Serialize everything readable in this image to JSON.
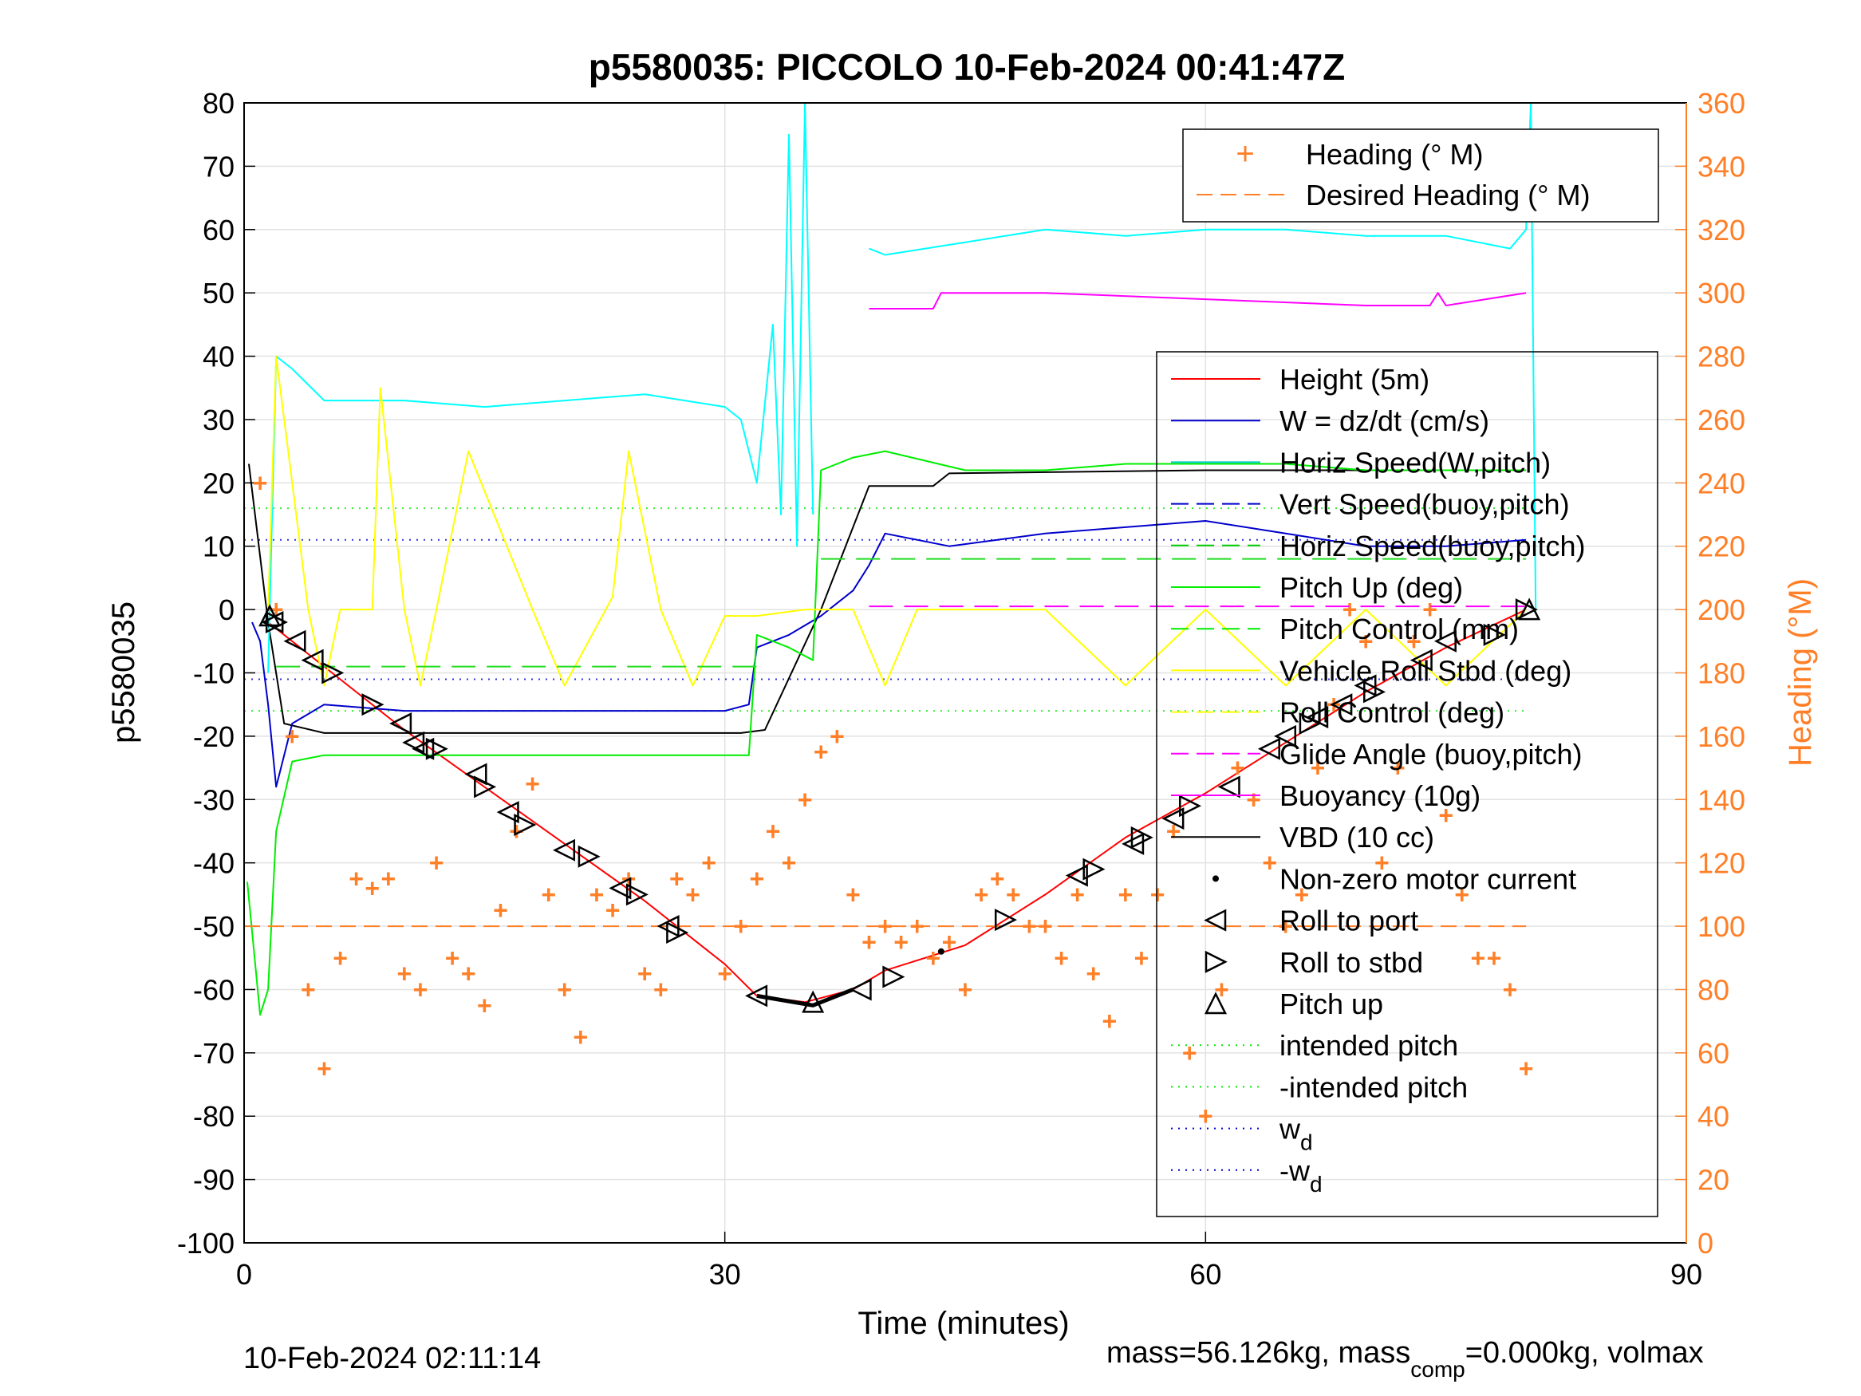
{
  "chart_data": {
    "type": "line",
    "title": "p5580035: PICCOLO 10-Feb-2024 00:41:47Z",
    "xlabel": "Time (minutes)",
    "ylabel_left": "p5580035",
    "ylabel_right": "Heading (°M)",
    "xlim": [
      0,
      90
    ],
    "ylim_left": [
      -100,
      80
    ],
    "ylim_right": [
      0,
      360
    ],
    "xticks": [
      "0",
      "30",
      "60",
      "90"
    ],
    "yticks_left": [
      "80",
      "70",
      "60",
      "50",
      "40",
      "30",
      "20",
      "10",
      "0",
      "-10",
      "-20",
      "-30",
      "-40",
      "-50",
      "-60",
      "-70",
      "-80",
      "-90",
      "-100"
    ],
    "yticks_right": [
      "360",
      "340",
      "320",
      "300",
      "280",
      "260",
      "240",
      "220",
      "200",
      "180",
      "160",
      "140",
      "120",
      "100",
      "80",
      "60",
      "40",
      "20",
      "0"
    ],
    "grid": true,
    "footer_left": "10-Feb-2024 02:11:14",
    "footer_right_parts": [
      "mass=56.126kg, mass",
      "comp",
      "=0.000kg, volmax"
    ],
    "legend_heading": {
      "placement": "top-right",
      "entries": [
        "Heading (° M)",
        "Desired Heading (° M)"
      ]
    },
    "legend_main": {
      "placement": "right",
      "entries": [
        {
          "label": "Height (5m)",
          "color": "#ff0000",
          "style": "solid"
        },
        {
          "label": "W = dz/dt (cm/s)",
          "color": "#0000cc",
          "style": "solid"
        },
        {
          "label": "Horiz Speed(W,pitch)",
          "color": "#00cccc",
          "style": "solid"
        },
        {
          "label": "Vert Speed(buoy,pitch)",
          "color": "#0000cc",
          "style": "dash"
        },
        {
          "label": "Horiz Speed(buoy,pitch)",
          "color": "#00cc00",
          "style": "dash"
        },
        {
          "label": "Pitch Up (deg)",
          "color": "#00ee00",
          "style": "solid"
        },
        {
          "label": "Pitch Control (mm)",
          "color": "#00ee00",
          "style": "dash"
        },
        {
          "label": "Vehicle Roll Stbd (deg)",
          "color": "#ffff00",
          "style": "solid"
        },
        {
          "label": "Roll Control (deg)",
          "color": "#ffff00",
          "style": "dash"
        },
        {
          "label": "Glide Angle (buoy,pitch)",
          "color": "#ff00ff",
          "style": "dash"
        },
        {
          "label": "Buoyancy (10g)",
          "color": "#ff00ff",
          "style": "solid"
        },
        {
          "label": "VBD (10 cc)",
          "color": "#000000",
          "style": "solid"
        },
        {
          "label": "Non-zero motor current",
          "color": "#000000",
          "style": "dot"
        },
        {
          "label": "Roll to port",
          "color": "#000000",
          "style": "tri-left"
        },
        {
          "label": "Roll to stbd",
          "color": "#000000",
          "style": "tri-right"
        },
        {
          "label": "Pitch up",
          "color": "#000000",
          "style": "tri-up"
        },
        {
          "label": "intended pitch",
          "color": "#00ee00",
          "style": "dot"
        },
        {
          "label": "-intended pitch",
          "color": "#00ee00",
          "style": "dot"
        },
        {
          "label": "w_d",
          "label_main": "w",
          "label_sub": "d",
          "color": "#0000cc",
          "style": "dot"
        },
        {
          "label": "-w_d",
          "label_main": "-w",
          "label_sub": "d",
          "color": "#0000cc",
          "style": "dot"
        }
      ]
    },
    "colors": {
      "heading": "#ff7f27",
      "height": "#ff0000",
      "w": "#0000cc",
      "horiz_w": "#00ffff",
      "pitch": "#00ee00",
      "roll": "#ffff00",
      "buoyancy": "#ff00ff",
      "vbd": "#000000"
    },
    "series": [
      {
        "name": "Height (5m)",
        "axis": "left",
        "x": [
          1.5,
          5,
          10,
          15,
          20,
          25,
          30,
          32,
          35,
          38,
          40,
          45,
          50,
          55,
          60,
          65,
          70,
          75,
          80
        ],
        "y": [
          -2,
          -9,
          -19,
          -28,
          -37,
          -46,
          -56,
          -61,
          -62,
          -60,
          -57,
          -53,
          -45,
          -36,
          -29,
          -21,
          -13,
          -6,
          0
        ]
      },
      {
        "name": "VBD (10 cc)",
        "axis": "left",
        "x": [
          0.3,
          1.5,
          2.5,
          5,
          10,
          20,
          31,
          32.5,
          36,
          39,
          43,
          44,
          60,
          80
        ],
        "y": [
          23,
          -2,
          -18,
          -19.5,
          -19.5,
          -19.5,
          -19.5,
          -19,
          0,
          19.5,
          19.5,
          21.5,
          22,
          22
        ]
      },
      {
        "name": "W = dz/dt (cm/s)",
        "axis": "left",
        "x": [
          0.5,
          1,
          1.5,
          2,
          3,
          5,
          10,
          15,
          20,
          25,
          30,
          31.5,
          32,
          34,
          36,
          38,
          39,
          40,
          44,
          50,
          55,
          60,
          65,
          70,
          75,
          80
        ],
        "y": [
          -2,
          -5,
          -15,
          -28,
          -18,
          -15,
          -16,
          -16,
          -16,
          -16,
          -16,
          -15,
          -6,
          -4,
          -1,
          3,
          7,
          12,
          10,
          12,
          13,
          14,
          12,
          10,
          10,
          11
        ]
      },
      {
        "name": "Horiz Speed(W,pitch)",
        "axis": "left",
        "x": [
          1.5,
          2,
          3,
          5,
          10,
          15,
          20,
          25,
          30,
          31,
          32,
          33,
          33.5,
          34,
          34.5,
          35,
          35.5
        ],
        "y": [
          -10,
          40,
          38,
          33,
          33,
          32,
          33,
          34,
          32,
          30,
          20,
          45,
          15,
          75,
          10,
          80,
          15
        ]
      },
      {
        "name": "Horiz Speed(W,pitch) climb",
        "axis": "left",
        "x": [
          39,
          40,
          45,
          50,
          55,
          60,
          65,
          70,
          75,
          79,
          80,
          80.3,
          80.6
        ],
        "y": [
          57,
          56,
          58,
          60,
          59,
          60,
          60,
          59,
          59,
          57,
          60,
          80,
          0
        ]
      },
      {
        "name": "Pitch Up (deg)",
        "axis": "left",
        "x": [
          0.2,
          1,
          1.5,
          2,
          3,
          5,
          10,
          15,
          20,
          25,
          30,
          31.5,
          32,
          34,
          35.5,
          36,
          38,
          40,
          45,
          50,
          55,
          60,
          65,
          70,
          75,
          80
        ],
        "y": [
          -43,
          -64,
          -60,
          -35,
          -24,
          -23,
          -23,
          -23,
          -23,
          -23,
          -23,
          -23,
          -4,
          -6,
          -8,
          22,
          24,
          25,
          22,
          22,
          23,
          23,
          23,
          22,
          22,
          22
        ]
      },
      {
        "name": "Buoyancy (10g)",
        "axis": "left",
        "x": [
          39,
          43,
          43.5,
          50,
          60,
          70,
          74,
          74.5,
          75,
          80
        ],
        "y": [
          47.5,
          47.5,
          50,
          50,
          49,
          48,
          48,
          50,
          48,
          50
        ]
      },
      {
        "name": "Vehicle Roll Stbd (deg)",
        "axis": "left",
        "x": [
          1.5,
          2,
          4,
          5,
          6,
          8,
          8.5,
          10,
          11,
          12,
          14,
          18,
          20,
          23,
          24,
          26,
          28,
          30,
          32,
          35,
          38,
          40,
          42,
          45,
          50,
          55,
          60,
          65,
          70,
          75,
          80
        ],
        "y": [
          0,
          40,
          0,
          -12,
          0,
          0,
          35,
          0,
          -12,
          0,
          25,
          0,
          -12,
          2,
          25,
          0,
          -12,
          -1,
          -1,
          0,
          0,
          -12,
          0,
          0,
          0,
          -12,
          0,
          -12,
          0,
          -12,
          0
        ]
      },
      {
        "name": "Heading (° M)",
        "axis": "right",
        "x": [
          1,
          2,
          3,
          4,
          5,
          6,
          7,
          8,
          9,
          10,
          11,
          12,
          13,
          14,
          15,
          16,
          17,
          18,
          19,
          20,
          21,
          22,
          23,
          24,
          25,
          26,
          27,
          28,
          29,
          30,
          31,
          32,
          33,
          34,
          35,
          36,
          37,
          38,
          39,
          40,
          41,
          42,
          43,
          44,
          45,
          46,
          47,
          48,
          49,
          50,
          51,
          52,
          53,
          54,
          55,
          56,
          57,
          58,
          59,
          60,
          61,
          62,
          63,
          64,
          65,
          66,
          67,
          68,
          69,
          70,
          71,
          72,
          73,
          74,
          75,
          76,
          77,
          78,
          79,
          80
        ],
        "y": [
          240,
          200,
          160,
          80,
          55,
          90,
          115,
          112,
          115,
          85,
          80,
          120,
          90,
          85,
          75,
          105,
          130,
          145,
          110,
          80,
          65,
          110,
          105,
          115,
          85,
          80,
          115,
          110,
          120,
          85,
          100,
          115,
          130,
          120,
          140,
          155,
          160,
          110,
          95,
          100,
          95,
          100,
          90,
          95,
          80,
          110,
          115,
          110,
          100,
          100,
          90,
          110,
          85,
          70,
          110,
          90,
          110,
          130,
          60,
          40,
          80,
          150,
          140,
          120,
          100,
          110,
          150,
          170,
          200,
          190,
          120,
          150,
          190,
          200,
          135,
          110,
          90,
          90,
          80,
          55
        ]
      },
      {
        "name": "Desired Heading (° M)",
        "axis": "right",
        "x": [
          0,
          80
        ],
        "y": [
          100,
          100
        ]
      },
      {
        "name": "Pitch Control (mm)",
        "axis": "left",
        "x": [
          2,
          32
        ],
        "y": [
          -9,
          -9
        ]
      },
      {
        "name": "Pitch Control climb",
        "axis": "left",
        "x": [
          36,
          80
        ],
        "y": [
          8,
          8
        ]
      },
      {
        "name": "Glide Angle (buoy,pitch)",
        "axis": "left",
        "x": [
          39,
          80
        ],
        "y": [
          0.5,
          0.5
        ]
      }
    ],
    "reference_lines": [
      {
        "name": "intended pitch",
        "y": 16,
        "axis": "left"
      },
      {
        "name": "-intended pitch",
        "y": -16,
        "axis": "left"
      },
      {
        "name": "w_d",
        "y": 11,
        "axis": "left"
      },
      {
        "name": "-w_d",
        "y": -11,
        "axis": "left"
      }
    ],
    "markers": {
      "roll_to_port": {
        "x": [
          1.8,
          3.2,
          4.3,
          9.8,
          10.6,
          11.2,
          14.5,
          16.5,
          20,
          23.5,
          26.5,
          32,
          38.5,
          52,
          55.5,
          58,
          61.5,
          64,
          65,
          67,
          68.5,
          70,
          73.5,
          75
        ],
        "y": [
          -2,
          -5,
          -8,
          -18,
          -21,
          -22,
          -26,
          -32,
          -38,
          -44,
          -50,
          -61,
          -60,
          -42,
          -37,
          -33,
          -28,
          -22,
          -20,
          -17,
          -15,
          -12,
          -8,
          -5
        ]
      },
      "roll_to_stbd": {
        "x": [
          2.0,
          5.5,
          8,
          12,
          15,
          17.5,
          21.5,
          24.5,
          27,
          40.5,
          47.5,
          53,
          56,
          59,
          66.5,
          70.5,
          78,
          80
        ],
        "y": [
          -2,
          -10,
          -15,
          -22,
          -28,
          -34,
          -39,
          -45,
          -51,
          -58,
          -49,
          -41,
          -36,
          -31,
          -18,
          -13,
          -4,
          0
        ]
      },
      "pitch_up": {
        "x": [
          1.6,
          35.5,
          80.2
        ],
        "y": [
          -1,
          -62,
          0
        ]
      },
      "motor_current": {
        "x": [
          43.5
        ],
        "y": [
          -54
        ]
      }
    }
  }
}
